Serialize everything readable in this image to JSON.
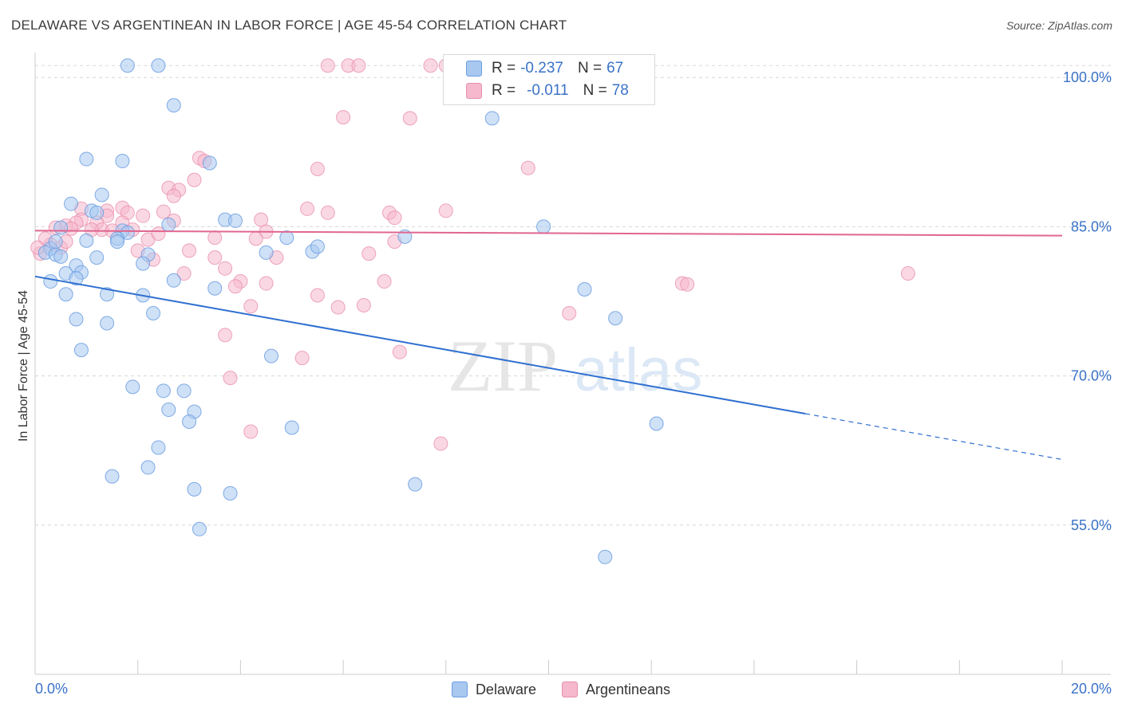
{
  "header": {
    "title": "DELAWARE VS ARGENTINEAN IN LABOR FORCE | AGE 45-54 CORRELATION CHART",
    "source": "Source: ZipAtlas.com"
  },
  "watermark": {
    "zip": "ZIP",
    "atlas": "atlas"
  },
  "legend": {
    "rows": [
      {
        "r_label": "R =",
        "r_value": "-0.237",
        "n_label": "N =",
        "n_value": "67"
      },
      {
        "r_label": "R =",
        "r_value": "-0.011",
        "n_label": "N =",
        "n_value": "78"
      }
    ]
  },
  "bottom_legend": {
    "items": [
      "Delaware",
      "Argentineans"
    ]
  },
  "colors": {
    "delaware_fill": "#a8c8f0",
    "delaware_stroke": "#6b9ee0",
    "delaware_line": "#2f6fd0",
    "argentinean_fill": "#f5b8cc",
    "argentinean_stroke": "#e890ad",
    "argentinean_line": "#e06690",
    "tick_label": "#3a72c7",
    "grid": "#d8d8d8"
  },
  "chart_data": {
    "type": "scatter",
    "title": "DELAWARE VS ARGENTINEAN IN LABOR FORCE | AGE 45-54 CORRELATION CHART",
    "xlabel": "",
    "ylabel": "In Labor Force | Age 45-54",
    "xlim": [
      0,
      20
    ],
    "ylim": [
      40,
      102.5
    ],
    "x_tick_labels": [
      "0.0%",
      "20.0%"
    ],
    "y_ticks": [
      55,
      70,
      85,
      100
    ],
    "y_tick_labels": [
      "55.0%",
      "70.0%",
      "85.0%",
      "100.0%"
    ],
    "grid": true,
    "legend_position": "top-center",
    "series": [
      {
        "name": "Delaware",
        "r": -0.237,
        "n": 67,
        "trend": {
          "x0": 0.0,
          "y0": 80.0,
          "x_solid_end": 15.0,
          "x1": 20.0,
          "y1": 61.6
        },
        "points": [
          [
            1.8,
            101.2
          ],
          [
            2.4,
            101.2
          ],
          [
            2.7,
            97.2
          ],
          [
            8.9,
            95.9
          ],
          [
            1.0,
            91.8
          ],
          [
            1.7,
            91.6
          ],
          [
            3.4,
            91.4
          ],
          [
            1.3,
            88.2
          ],
          [
            0.7,
            87.3
          ],
          [
            1.1,
            86.6
          ],
          [
            1.2,
            86.4
          ],
          [
            3.7,
            85.7
          ],
          [
            3.9,
            85.6
          ],
          [
            2.6,
            85.2
          ],
          [
            0.5,
            84.9
          ],
          [
            1.7,
            84.6
          ],
          [
            1.8,
            84.4
          ],
          [
            9.9,
            85.0
          ],
          [
            1.6,
            83.8
          ],
          [
            1.6,
            83.5
          ],
          [
            4.9,
            83.9
          ],
          [
            7.2,
            84.0
          ],
          [
            0.3,
            82.8
          ],
          [
            0.2,
            82.4
          ],
          [
            0.4,
            82.2
          ],
          [
            0.5,
            82.0
          ],
          [
            1.2,
            81.9
          ],
          [
            2.2,
            82.2
          ],
          [
            4.5,
            82.4
          ],
          [
            5.4,
            82.5
          ],
          [
            2.1,
            81.3
          ],
          [
            0.8,
            81.1
          ],
          [
            0.9,
            80.4
          ],
          [
            0.6,
            80.3
          ],
          [
            0.8,
            79.8
          ],
          [
            0.3,
            79.5
          ],
          [
            2.7,
            79.6
          ],
          [
            3.5,
            78.8
          ],
          [
            10.7,
            78.7
          ],
          [
            0.6,
            78.2
          ],
          [
            1.4,
            78.2
          ],
          [
            2.1,
            78.1
          ],
          [
            2.3,
            76.3
          ],
          [
            0.8,
            75.7
          ],
          [
            1.4,
            75.3
          ],
          [
            11.3,
            75.8
          ],
          [
            0.9,
            72.6
          ],
          [
            4.6,
            72.0
          ],
          [
            1.9,
            68.9
          ],
          [
            2.5,
            68.5
          ],
          [
            2.9,
            68.5
          ],
          [
            2.6,
            66.6
          ],
          [
            3.1,
            66.4
          ],
          [
            3.0,
            65.4
          ],
          [
            12.1,
            65.2
          ],
          [
            5.0,
            64.8
          ],
          [
            2.4,
            62.8
          ],
          [
            2.2,
            60.8
          ],
          [
            1.5,
            59.9
          ],
          [
            7.4,
            59.1
          ],
          [
            3.1,
            58.6
          ],
          [
            3.8,
            58.2
          ],
          [
            3.2,
            54.6
          ],
          [
            11.1,
            51.8
          ],
          [
            0.4,
            83.5
          ],
          [
            1.0,
            83.6
          ],
          [
            5.5,
            83.0
          ]
        ]
      },
      {
        "name": "Argentineans",
        "r": -0.011,
        "n": 78,
        "trend": {
          "x0": 0.0,
          "y0": 84.6,
          "x1": 20.0,
          "y1": 84.1
        },
        "points": [
          [
            5.7,
            101.2
          ],
          [
            6.1,
            101.2
          ],
          [
            6.3,
            101.2
          ],
          [
            7.7,
            101.2
          ],
          [
            8.0,
            101.2
          ],
          [
            6.0,
            96.0
          ],
          [
            7.3,
            95.9
          ],
          [
            3.2,
            91.9
          ],
          [
            3.3,
            91.6
          ],
          [
            5.5,
            90.8
          ],
          [
            9.6,
            90.9
          ],
          [
            3.1,
            89.7
          ],
          [
            2.6,
            88.9
          ],
          [
            2.8,
            88.7
          ],
          [
            2.7,
            88.1
          ],
          [
            1.7,
            86.9
          ],
          [
            0.9,
            86.8
          ],
          [
            1.4,
            86.6
          ],
          [
            1.8,
            86.4
          ],
          [
            1.4,
            86.1
          ],
          [
            2.1,
            86.1
          ],
          [
            2.5,
            86.5
          ],
          [
            5.3,
            86.8
          ],
          [
            5.7,
            86.4
          ],
          [
            6.9,
            86.4
          ],
          [
            7.0,
            85.9
          ],
          [
            8.0,
            86.6
          ],
          [
            0.9,
            85.7
          ],
          [
            0.8,
            85.4
          ],
          [
            1.2,
            85.4
          ],
          [
            1.7,
            85.4
          ],
          [
            2.7,
            85.6
          ],
          [
            4.4,
            85.7
          ],
          [
            0.6,
            85.1
          ],
          [
            0.4,
            84.9
          ],
          [
            0.7,
            84.8
          ],
          [
            1.3,
            84.7
          ],
          [
            1.9,
            84.7
          ],
          [
            4.5,
            84.5
          ],
          [
            3.5,
            83.9
          ],
          [
            4.3,
            83.8
          ],
          [
            2.2,
            83.7
          ],
          [
            7.0,
            83.5
          ],
          [
            0.3,
            83.2
          ],
          [
            0.5,
            82.9
          ],
          [
            2.0,
            82.6
          ],
          [
            6.5,
            82.3
          ],
          [
            3.5,
            81.9
          ],
          [
            4.7,
            81.9
          ],
          [
            2.3,
            81.7
          ],
          [
            3.7,
            80.8
          ],
          [
            2.9,
            80.3
          ],
          [
            6.8,
            79.5
          ],
          [
            4.0,
            79.5
          ],
          [
            4.5,
            79.3
          ],
          [
            3.9,
            79.0
          ],
          [
            12.6,
            79.3
          ],
          [
            12.7,
            79.2
          ],
          [
            17.0,
            80.3
          ],
          [
            5.5,
            78.1
          ],
          [
            4.2,
            77.0
          ],
          [
            5.9,
            76.9
          ],
          [
            6.4,
            77.1
          ],
          [
            10.4,
            76.3
          ],
          [
            3.7,
            74.1
          ],
          [
            7.1,
            72.4
          ],
          [
            5.2,
            71.8
          ],
          [
            3.8,
            69.8
          ],
          [
            4.2,
            64.4
          ],
          [
            7.9,
            63.2
          ],
          [
            0.2,
            83.8
          ],
          [
            0.1,
            82.3
          ],
          [
            0.05,
            82.9
          ],
          [
            1.1,
            84.7
          ],
          [
            1.5,
            84.6
          ],
          [
            0.6,
            83.5
          ],
          [
            2.4,
            84.3
          ],
          [
            3.0,
            82.6
          ]
        ]
      }
    ]
  }
}
